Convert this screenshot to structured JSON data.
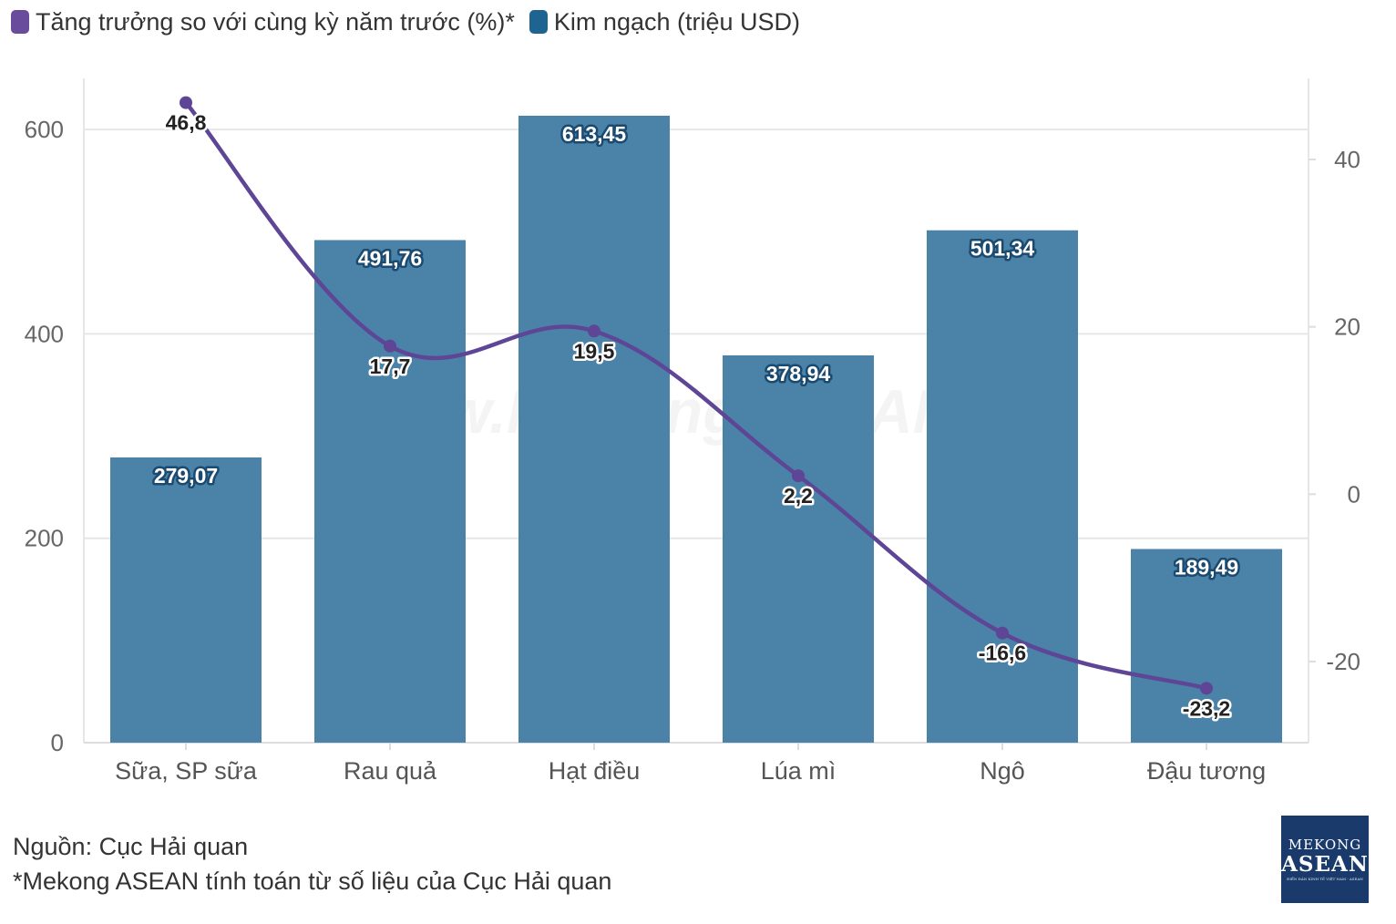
{
  "legend": {
    "growth": {
      "label": "Tăng trưởng so với cùng kỳ năm trước (%)*",
      "color": "#6a4c9c"
    },
    "value": {
      "label": "Kim ngạch (triệu USD)",
      "color": "#1f6391"
    }
  },
  "watermark": "www.MekongASEAN.vn",
  "notes": {
    "source": "Nguồn: Cục Hải quan",
    "footnote": "*Mekong ASEAN tính toán từ số liệu của Cục Hải quan"
  },
  "logo": {
    "line1": "MEKONG",
    "line2": "ASEAN",
    "tagline": "ĐIỂN ĐÀN KINH TẾ VIỆT NAM - ASEAN"
  },
  "colors": {
    "bar": "#4a82a8",
    "line": "#5e4595",
    "grid": "#e6e6e6",
    "axis_text": "#666666"
  },
  "chart_data": {
    "type": "bar+line",
    "categories": [
      "Sữa, SP sữa",
      "Rau quả",
      "Hạt điều",
      "Lúa mì",
      "Ngô",
      "Đậu tương"
    ],
    "series": [
      {
        "name": "Kim ngạch (triệu USD)",
        "type": "bar",
        "axis": "left",
        "values": [
          279.07,
          491.76,
          613.45,
          378.94,
          501.34,
          189.49
        ],
        "labels": [
          "279,07",
          "491,76",
          "613,45",
          "378,94",
          "501,34",
          "189,49"
        ]
      },
      {
        "name": "Tăng trưởng so với cùng kỳ năm trước (%)*",
        "type": "line",
        "axis": "right",
        "values": [
          46.8,
          17.7,
          19.5,
          2.2,
          -16.6,
          -23.2
        ],
        "labels": [
          "46,8",
          "17,7",
          "19,5",
          "2,2",
          "-16,6",
          "-23,2"
        ]
      }
    ],
    "y_left": {
      "ticks": [
        0,
        200,
        400,
        600
      ],
      "tick_labels": [
        "0",
        "200",
        "400",
        "600"
      ],
      "range": [
        0,
        650
      ]
    },
    "y_right": {
      "ticks": [
        -20,
        0,
        20,
        40
      ],
      "tick_labels": [
        "-20",
        "0",
        "20",
        "40"
      ],
      "range": [
        -29.7,
        49.7
      ]
    },
    "grid": true,
    "legend_position": "top-left"
  }
}
